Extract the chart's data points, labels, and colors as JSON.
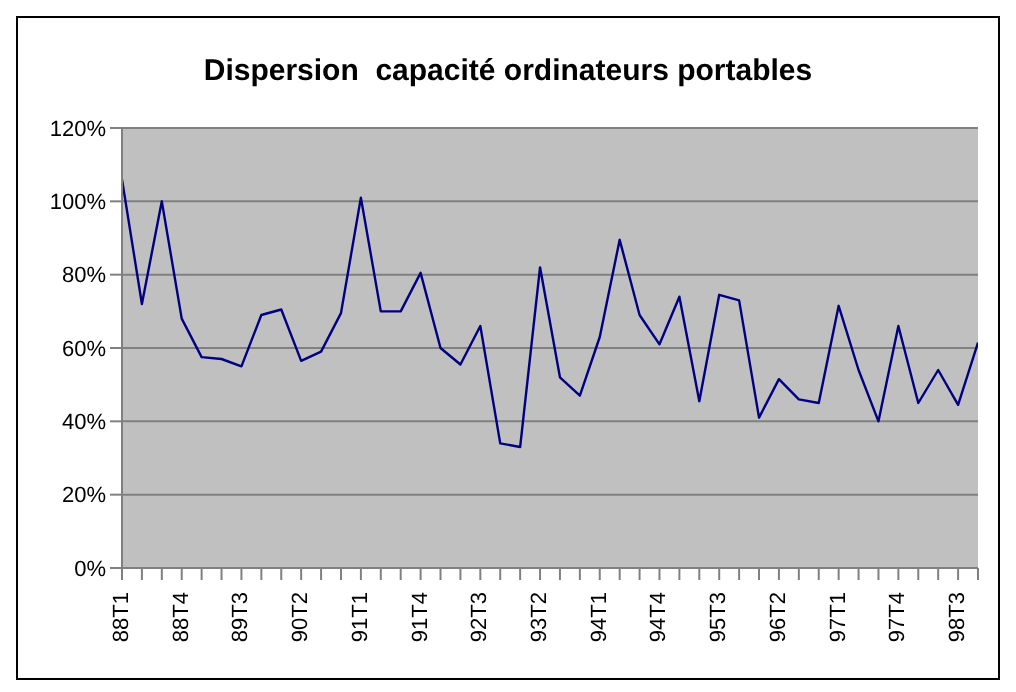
{
  "chart_data": {
    "type": "line",
    "title": "Dispersion  capacité ordinateurs portables",
    "categories": [
      "88T1",
      null,
      null,
      "88T4",
      null,
      null,
      "89T3",
      null,
      null,
      "90T2",
      null,
      null,
      "91T1",
      null,
      null,
      "91T4",
      null,
      null,
      "92T3",
      null,
      null,
      "93T2",
      null,
      null,
      "94T1",
      null,
      null,
      "94T4",
      null,
      null,
      "95T3",
      null,
      null,
      "96T2",
      null,
      null,
      "97T1",
      null,
      null,
      "97T4",
      null,
      null,
      "98T3",
      null
    ],
    "series": [
      {
        "color": "#000080",
        "values": [
          106,
          72,
          100,
          68,
          57.5,
          57,
          55,
          69,
          70.5,
          56.5,
          59,
          69.5,
          101,
          70,
          70,
          80.5,
          60,
          55.5,
          66,
          34,
          33,
          82,
          52,
          47,
          63,
          89.5,
          69,
          61,
          74,
          45.5,
          74.5,
          73,
          41,
          51.5,
          46,
          45,
          71.5,
          54,
          40,
          66,
          45,
          54,
          44.5,
          61.5
        ]
      }
    ],
    "ylim": [
      0,
      120
    ],
    "yticks": [
      {
        "value": 0,
        "label": "0%"
      },
      {
        "value": 20,
        "label": "20%"
      },
      {
        "value": 40,
        "label": "40%"
      },
      {
        "value": 60,
        "label": "60%"
      },
      {
        "value": 80,
        "label": "80%"
      },
      {
        "value": 100,
        "label": "100%"
      },
      {
        "value": 120,
        "label": "120%"
      }
    ],
    "grid": "y",
    "marker": "none",
    "line_style": "solid"
  }
}
